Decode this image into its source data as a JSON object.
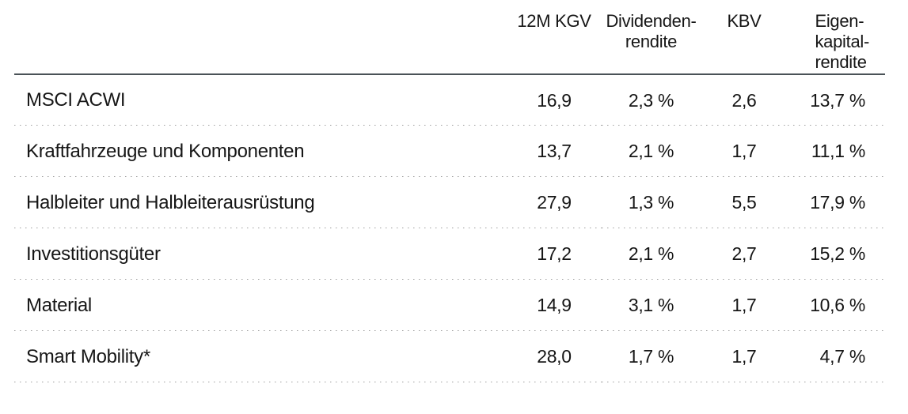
{
  "page": {
    "background": "#ffffff"
  },
  "colors": {
    "text": "#161616",
    "header_rule": "#4a5257",
    "row_divider": "#9e9e9e",
    "background": "#ffffff"
  },
  "chart_data": {
    "type": "table",
    "title": "",
    "columns": [
      "",
      "12M KGV",
      "Dividenden-\nrendite",
      "KBV",
      "Eigen-\nkapital-\nrendite"
    ],
    "rows": [
      [
        "MSCI ACWI",
        "16,9",
        "2,3 %",
        "2,6",
        "13,7 %"
      ],
      [
        "Kraftfahrzeuge und Komponenten",
        "13,7",
        "2,1 %",
        "1,7",
        "11,1 %"
      ],
      [
        "Halbleiter und Halbleiterausrüstung",
        "27,9",
        "1,3 %",
        "5,5",
        "17,9 %"
      ],
      [
        "Investitionsgüter",
        "17,2",
        "2,1 %",
        "2,7",
        "15,2 %"
      ],
      [
        "Material",
        "14,9",
        "3,1 %",
        "1,7",
        "10,6 %"
      ],
      [
        "Smart Mobility*",
        "28,0",
        "1,7 %",
        "1,7",
        "4,7 %"
      ]
    ]
  }
}
